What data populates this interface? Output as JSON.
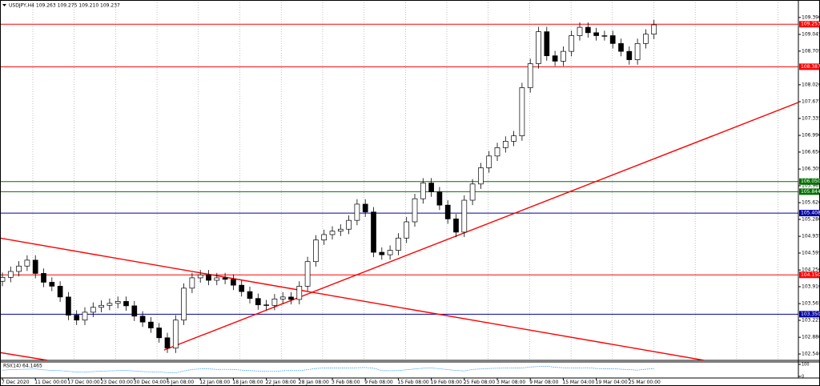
{
  "chart_data": {
    "type": "candlestick",
    "title": "USDJPY,H4  109.263 109.275 109.210 109.237",
    "categories": [
      "7 Dec 2020",
      null,
      null,
      null,
      "11 Dec 00:00",
      null,
      null,
      null,
      "17 Dec 00:00",
      null,
      null,
      null,
      "23 Dec 00:00",
      null,
      null,
      null,
      "30 Dec 04:00",
      null,
      null,
      null,
      "6 Jan 08:00",
      null,
      null,
      null,
      "12 Jan 08:00",
      null,
      null,
      null,
      "18 Jan 08:00",
      null,
      null,
      null,
      "22 Jan 08:00",
      null,
      null,
      null,
      "28 Jan 08:00",
      null,
      null,
      null,
      "3 Feb 08:00",
      null,
      null,
      null,
      "9 Feb 08:00",
      null,
      null,
      null,
      "15 Feb 08:00",
      null,
      null,
      null,
      "19 Feb 08:00",
      null,
      null,
      null,
      "25 Feb 08:00",
      null,
      null,
      null,
      "3 Mar 08:00",
      null,
      null,
      null,
      "9 Mar 08:00",
      null,
      null,
      null,
      "15 Mar 04:00",
      null,
      null,
      null,
      "19 Mar 04:00",
      null,
      null,
      null,
      "25 Mar 00:00",
      null,
      null,
      null
    ],
    "open": [
      104.02,
      104.1,
      104.22,
      104.33,
      104.45,
      104.18,
      104.0,
      103.92,
      103.7,
      103.33,
      103.23,
      103.39,
      103.49,
      103.53,
      103.57,
      103.61,
      103.52,
      103.31,
      103.19,
      103.07,
      102.87,
      102.66,
      103.23,
      103.88,
      104.09,
      104.15,
      104.04,
      104.09,
      104.06,
      103.94,
      103.81,
      103.67,
      103.54,
      103.53,
      103.66,
      103.7,
      103.65,
      103.92,
      104.42,
      104.86,
      104.97,
      105.04,
      105.08,
      105.26,
      105.59,
      105.43,
      104.61,
      104.56,
      104.65,
      104.9,
      105.23,
      105.7,
      106.02,
      105.84,
      105.57,
      105.29,
      105.02,
      105.67,
      106.0,
      106.33,
      106.57,
      106.74,
      106.87,
      106.98,
      107.96,
      108.45,
      109.1,
      108.61,
      108.5,
      108.7,
      109.02,
      109.19,
      109.08,
      109.02,
      109.02,
      108.86,
      108.7,
      108.53,
      108.86,
      109.05
    ],
    "high": [
      104.2,
      104.32,
      104.43,
      104.55,
      104.55,
      104.28,
      104.1,
      104.02,
      103.8,
      103.43,
      103.49,
      103.59,
      103.63,
      103.67,
      103.71,
      103.71,
      103.62,
      103.41,
      103.29,
      103.17,
      102.97,
      103.33,
      103.98,
      104.19,
      104.25,
      104.25,
      104.19,
      104.19,
      104.16,
      104.04,
      103.91,
      103.77,
      103.64,
      103.76,
      103.8,
      103.8,
      104.02,
      104.52,
      104.96,
      105.07,
      105.14,
      105.18,
      105.36,
      105.69,
      105.69,
      105.53,
      104.71,
      104.75,
      105.0,
      105.33,
      105.8,
      106.12,
      106.12,
      105.94,
      105.67,
      105.39,
      105.77,
      106.1,
      106.43,
      106.67,
      106.84,
      106.97,
      107.08,
      108.06,
      108.55,
      109.2,
      109.2,
      108.71,
      108.8,
      109.12,
      109.29,
      109.29,
      109.18,
      109.12,
      109.12,
      108.96,
      108.8,
      108.96,
      109.15,
      109.34
    ],
    "low": [
      103.92,
      104.0,
      104.12,
      104.23,
      104.08,
      103.9,
      103.82,
      103.6,
      103.23,
      103.13,
      103.13,
      103.29,
      103.39,
      103.43,
      103.47,
      103.42,
      103.21,
      103.09,
      102.97,
      102.77,
      102.56,
      102.56,
      103.13,
      103.78,
      103.99,
      103.94,
      103.94,
      103.96,
      103.84,
      103.71,
      103.57,
      103.44,
      103.43,
      103.43,
      103.56,
      103.55,
      103.55,
      103.82,
      104.32,
      104.76,
      104.87,
      104.94,
      104.98,
      105.16,
      105.33,
      104.51,
      104.46,
      104.46,
      104.55,
      104.8,
      105.13,
      105.6,
      105.74,
      105.47,
      105.19,
      104.92,
      104.92,
      105.57,
      105.9,
      106.23,
      106.47,
      106.64,
      106.77,
      106.88,
      107.86,
      108.35,
      108.51,
      108.4,
      108.4,
      108.6,
      108.92,
      108.98,
      108.92,
      108.92,
      108.76,
      108.6,
      108.43,
      108.43,
      108.76,
      108.95
    ],
    "close": [
      104.1,
      104.22,
      104.33,
      104.45,
      104.18,
      104.0,
      103.92,
      103.7,
      103.33,
      103.23,
      103.39,
      103.49,
      103.53,
      103.57,
      103.61,
      103.52,
      103.31,
      103.19,
      103.07,
      102.87,
      102.66,
      103.23,
      103.88,
      104.09,
      104.15,
      104.04,
      104.09,
      104.06,
      103.94,
      103.81,
      103.67,
      103.54,
      103.53,
      103.66,
      103.7,
      103.65,
      103.92,
      104.42,
      104.86,
      104.97,
      105.04,
      105.08,
      105.26,
      105.59,
      105.43,
      104.61,
      104.56,
      104.65,
      104.9,
      105.23,
      105.7,
      106.02,
      105.84,
      105.57,
      105.29,
      105.02,
      105.67,
      106.0,
      106.33,
      106.57,
      106.74,
      106.87,
      106.98,
      107.96,
      108.45,
      109.1,
      108.61,
      108.5,
      108.7,
      109.02,
      109.19,
      109.08,
      109.02,
      109.02,
      108.86,
      108.7,
      108.53,
      108.86,
      109.05,
      109.24
    ],
    "ylim": [
      102.41,
      109.55
    ],
    "yticks": [
      {
        "value": 109.39,
        "label": "109.390"
      },
      {
        "value": 109.045,
        "label": "109.045"
      },
      {
        "value": 108.705,
        "label": "108.705"
      },
      {
        "value": 108.02,
        "label": "108.020"
      },
      {
        "value": 107.675,
        "label": "107.675"
      },
      {
        "value": 107.335,
        "label": "107.335"
      },
      {
        "value": 106.99,
        "label": "106.990"
      },
      {
        "value": 106.65,
        "label": "106.650"
      },
      {
        "value": 106.305,
        "label": "106.305"
      },
      {
        "value": 105.965,
        "label": "105.965"
      },
      {
        "value": 105.62,
        "label": "105.620"
      },
      {
        "value": 105.28,
        "label": "105.280"
      },
      {
        "value": 104.935,
        "label": "104.935"
      },
      {
        "value": 104.595,
        "label": "104.595"
      },
      {
        "value": 104.25,
        "label": "104.250"
      },
      {
        "value": 103.91,
        "label": "103.910"
      },
      {
        "value": 103.565,
        "label": "103.565"
      },
      {
        "value": 103.225,
        "label": "103.225"
      },
      {
        "value": 102.88,
        "label": "102.880"
      },
      {
        "value": 102.54,
        "label": "102.540"
      }
    ],
    "levels": [
      {
        "value": 109.253,
        "label": "109.253",
        "color": "#ff0000"
      },
      {
        "value": 108.387,
        "label": "108.387",
        "color": "#ff0000"
      },
      {
        "value": 106.05,
        "label": "106.050",
        "color": "#007000"
      },
      {
        "value": 105.844,
        "label": "105.844",
        "color": "#007000"
      },
      {
        "value": 105.408,
        "label": "105.408",
        "color": "#0000a0"
      },
      {
        "value": 104.15,
        "label": "104.150",
        "color": "#ff0000"
      },
      {
        "value": 103.35,
        "label": "103.350",
        "color": "#0000a0"
      }
    ],
    "trendlines": [
      {
        "from": [
          -0.3,
          104.9
        ],
        "to": [
          85.1,
          102.41
        ],
        "color": "#ff0000"
      },
      {
        "from": [
          19.6,
          102.62
        ],
        "to": [
          96.5,
          107.66
        ],
        "color": "#ff0000"
      },
      {
        "from": [
          -0.3,
          102.57
        ],
        "to": [
          5.5,
          102.41
        ],
        "color": "#ff0000"
      }
    ],
    "rsi": {
      "label": "RSI(14) 64.1465",
      "values": [
        52,
        56,
        58,
        60,
        62,
        55,
        50,
        48,
        42,
        36,
        35,
        40,
        44,
        46,
        48,
        50,
        45,
        40,
        38,
        36,
        32,
        30,
        45,
        58,
        62,
        63,
        58,
        59,
        58,
        52,
        48,
        45,
        42,
        42,
        47,
        49,
        48,
        56,
        66,
        70,
        70,
        70,
        70,
        72,
        74,
        68,
        48,
        47,
        49,
        55,
        62,
        68,
        70,
        64,
        56,
        50,
        45,
        58,
        62,
        66,
        68,
        69,
        70,
        70,
        78,
        82,
        85,
        76,
        72,
        71,
        71,
        72,
        66,
        64,
        64,
        60,
        56,
        52,
        60,
        64.1465
      ],
      "ylim": [
        0,
        100
      ],
      "yticks": [
        100,
        0
      ],
      "color": "#1e90ff"
    }
  }
}
